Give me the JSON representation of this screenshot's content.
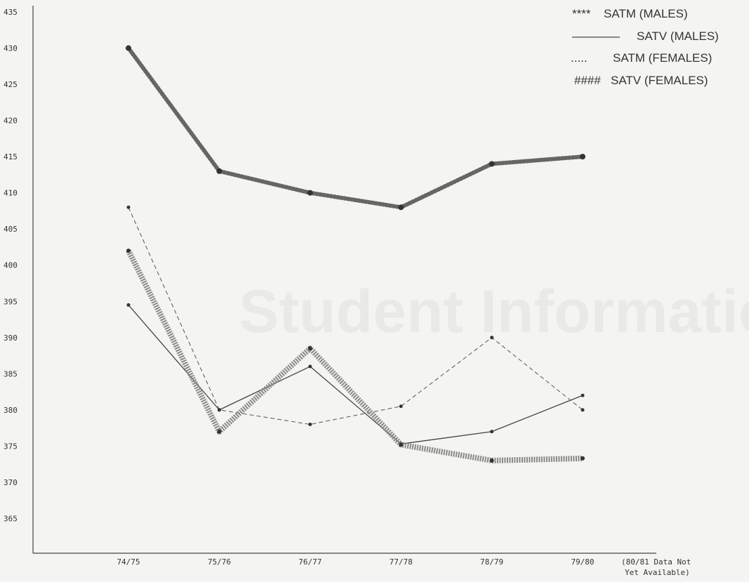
{
  "background_text": "Student Informatio",
  "chart_data": {
    "type": "line",
    "categories": [
      "74/75",
      "75/76",
      "76/77",
      "77/78",
      "78/79",
      "79/80"
    ],
    "trailing_note": [
      "(80/81 Data Not",
      "Yet Available)"
    ],
    "ylim": [
      360,
      435
    ],
    "yticks": [
      365,
      370,
      375,
      380,
      385,
      390,
      395,
      400,
      405,
      410,
      415,
      420,
      425,
      430,
      435
    ],
    "grid": false,
    "legend_position": "top-right",
    "series": [
      {
        "name": "SATM (MALES)",
        "legend_marker": "****",
        "style": "heavy-dotted",
        "values": [
          430,
          413,
          410,
          408,
          414,
          415
        ]
      },
      {
        "name": "SATV (MALES)",
        "legend_marker": "————",
        "style": "solid",
        "values": [
          394.5,
          380,
          386,
          375.3,
          377,
          382
        ]
      },
      {
        "name": "SATM (FEMALES)",
        "legend_marker": ".....",
        "style": "dashed",
        "values": [
          408,
          380,
          378,
          380.5,
          390,
          380
        ]
      },
      {
        "name": "SATV (FEMALES)",
        "legend_marker": "####",
        "style": "hatched",
        "values": [
          402,
          377,
          388.5,
          375.2,
          373,
          373.3
        ]
      }
    ]
  }
}
